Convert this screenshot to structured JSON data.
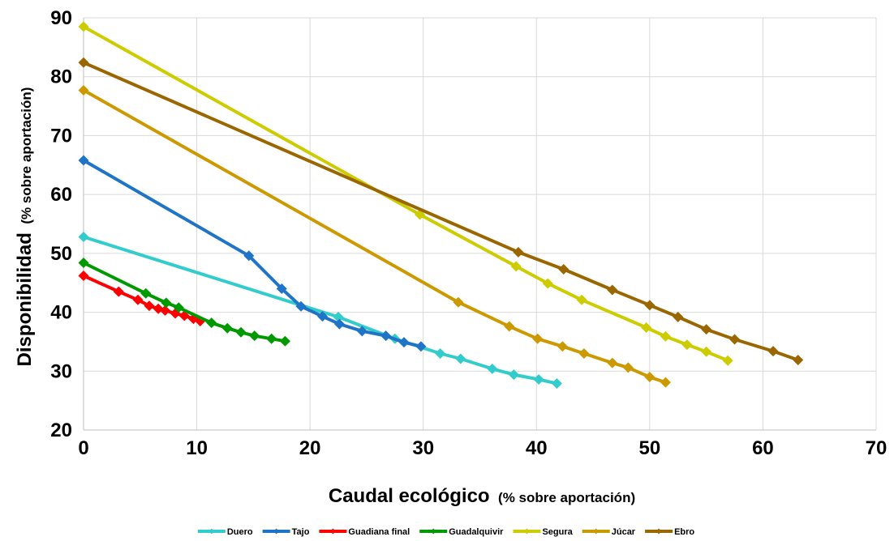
{
  "chart_data": {
    "type": "line",
    "xlabel_main": "Caudal ecológico",
    "xlabel_sub": "(% sobre aportación)",
    "ylabel_main": "Disponibilidad",
    "ylabel_sub": "(% sobre aportación)",
    "xlim": [
      0,
      70
    ],
    "ylim": [
      20,
      90
    ],
    "xticks": [
      0,
      10,
      20,
      30,
      40,
      50,
      60,
      70
    ],
    "yticks": [
      20,
      30,
      40,
      50,
      60,
      70,
      80,
      90
    ],
    "grid": true,
    "legend_position": "bottom",
    "series": [
      {
        "name": "Duero",
        "color": "#33CCCC",
        "points": [
          [
            0,
            52.8
          ],
          [
            22.5,
            39.2
          ],
          [
            27.5,
            35.5
          ],
          [
            31.5,
            33.0
          ],
          [
            33.3,
            32.1
          ],
          [
            36.1,
            30.4
          ],
          [
            38,
            29.4
          ],
          [
            40.2,
            28.6
          ],
          [
            41.8,
            27.9
          ]
        ]
      },
      {
        "name": "Tajo",
        "color": "#1F74C8",
        "points": [
          [
            0,
            65.8
          ],
          [
            14.6,
            49.6
          ],
          [
            17.5,
            44.0
          ],
          [
            19.2,
            41.0
          ],
          [
            21.1,
            39.3
          ],
          [
            22.6,
            38.0
          ],
          [
            24.6,
            36.8
          ],
          [
            26.7,
            36.0
          ],
          [
            28.3,
            34.9
          ],
          [
            29.8,
            34.2
          ]
        ]
      },
      {
        "name": "Guadiana final",
        "color": "#FF0000",
        "points": [
          [
            0,
            46.2
          ],
          [
            3.1,
            43.5
          ],
          [
            4.8,
            42.1
          ],
          [
            5.8,
            41.1
          ],
          [
            6.6,
            40.6
          ],
          [
            7.2,
            40.3
          ],
          [
            8.1,
            39.8
          ],
          [
            8.9,
            39.4
          ],
          [
            9.7,
            38.9
          ],
          [
            10.3,
            38.5
          ]
        ]
      },
      {
        "name": "Guadalquivir",
        "color": "#009900",
        "points": [
          [
            0,
            48.4
          ],
          [
            5.5,
            43.2
          ],
          [
            7.3,
            41.6
          ],
          [
            8.4,
            40.8
          ],
          [
            11.3,
            38.2
          ],
          [
            12.7,
            37.3
          ],
          [
            13.9,
            36.6
          ],
          [
            15.1,
            36.0
          ],
          [
            16.6,
            35.5
          ],
          [
            17.8,
            35.1
          ]
        ]
      },
      {
        "name": "Segura",
        "color": "#CCCC00",
        "points": [
          [
            0,
            88.5
          ],
          [
            29.7,
            56.6
          ],
          [
            38.2,
            47.8
          ],
          [
            41.0,
            44.9
          ],
          [
            44.0,
            42.1
          ],
          [
            49.7,
            37.4
          ],
          [
            51.4,
            35.9
          ],
          [
            53.3,
            34.5
          ],
          [
            55.0,
            33.3
          ],
          [
            56.9,
            31.8
          ]
        ]
      },
      {
        "name": "Júcar",
        "color": "#CC9900",
        "points": [
          [
            0,
            77.7
          ],
          [
            33.1,
            41.7
          ],
          [
            37.6,
            37.6
          ],
          [
            40.1,
            35.5
          ],
          [
            42.3,
            34.2
          ],
          [
            44.2,
            33.0
          ],
          [
            46.7,
            31.4
          ],
          [
            48.1,
            30.6
          ],
          [
            50.0,
            29.0
          ],
          [
            51.4,
            28.1
          ]
        ]
      },
      {
        "name": "Ebro",
        "color": "#996600",
        "points": [
          [
            0,
            82.4
          ],
          [
            38.4,
            50.2
          ],
          [
            42.4,
            47.3
          ],
          [
            46.7,
            43.8
          ],
          [
            50.0,
            41.2
          ],
          [
            52.5,
            39.2
          ],
          [
            55.0,
            37.1
          ],
          [
            57.5,
            35.4
          ],
          [
            60.9,
            33.4
          ],
          [
            63.1,
            31.9
          ]
        ]
      }
    ]
  }
}
